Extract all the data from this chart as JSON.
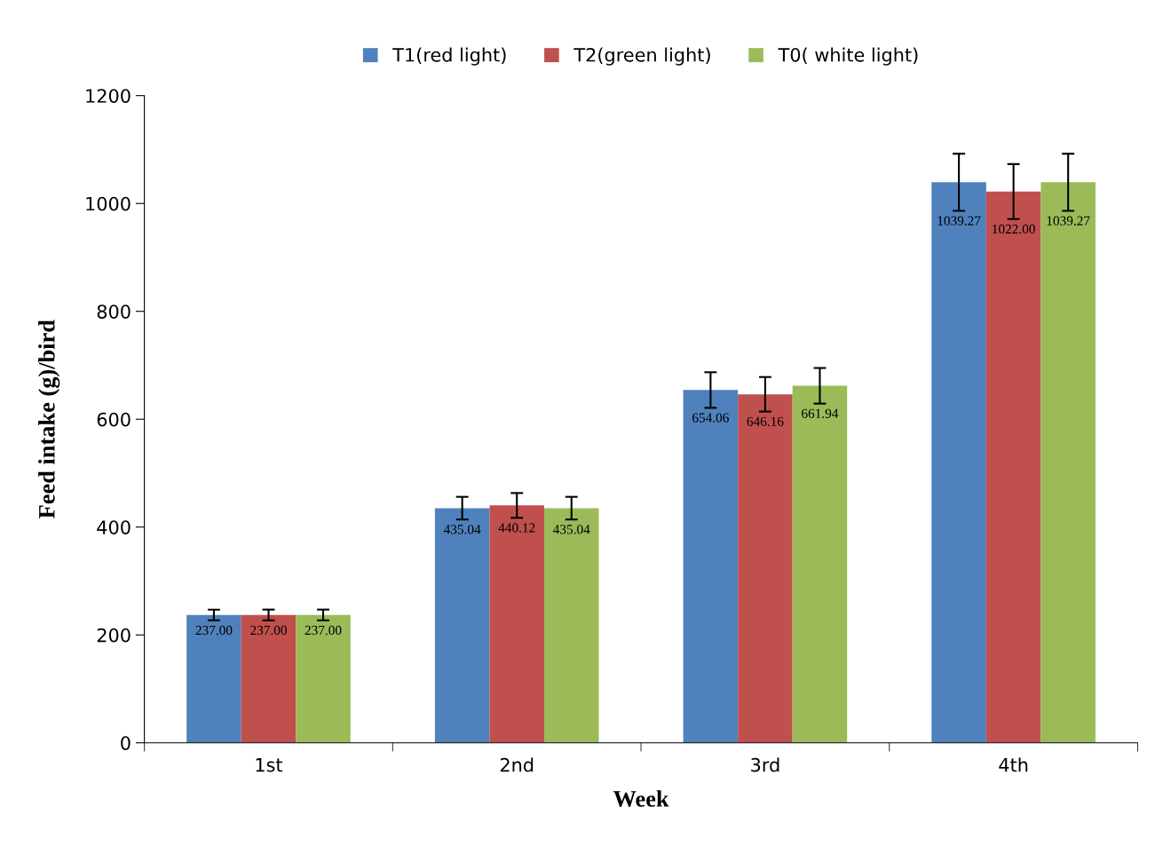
{
  "chart_data": {
    "type": "bar",
    "xlabel": "Week",
    "ylabel": "Feed intake (g)/bird",
    "categories": [
      "1st",
      "2nd",
      "3rd",
      "4th"
    ],
    "series": [
      {
        "name": "T1(red light)",
        "color": "#4f81bd",
        "values": [
          237.0,
          435.04,
          654.06,
          1039.27
        ],
        "errors": [
          10,
          21,
          33,
          53
        ],
        "value_labels": [
          "237.00",
          "435.04",
          "654.06",
          "1039.27"
        ]
      },
      {
        "name": "T2(green light)",
        "color": "#c0504d",
        "values": [
          237.0,
          440.12,
          646.16,
          1022.0
        ],
        "errors": [
          10,
          23,
          32,
          51
        ],
        "value_labels": [
          "237.00",
          "440.12",
          "646.16",
          "1022.00"
        ]
      },
      {
        "name": "T0( white light)",
        "color": "#9bbb59",
        "values": [
          237.0,
          435.04,
          661.94,
          1039.27
        ],
        "errors": [
          10,
          21,
          33,
          53
        ],
        "value_labels": [
          "237.00",
          "435.04",
          "661.94",
          "1039.27"
        ]
      }
    ],
    "ylim": [
      0,
      1200
    ],
    "yticks": [
      0,
      200,
      400,
      600,
      800,
      1000,
      1200
    ],
    "grid": false,
    "legend": "top"
  }
}
